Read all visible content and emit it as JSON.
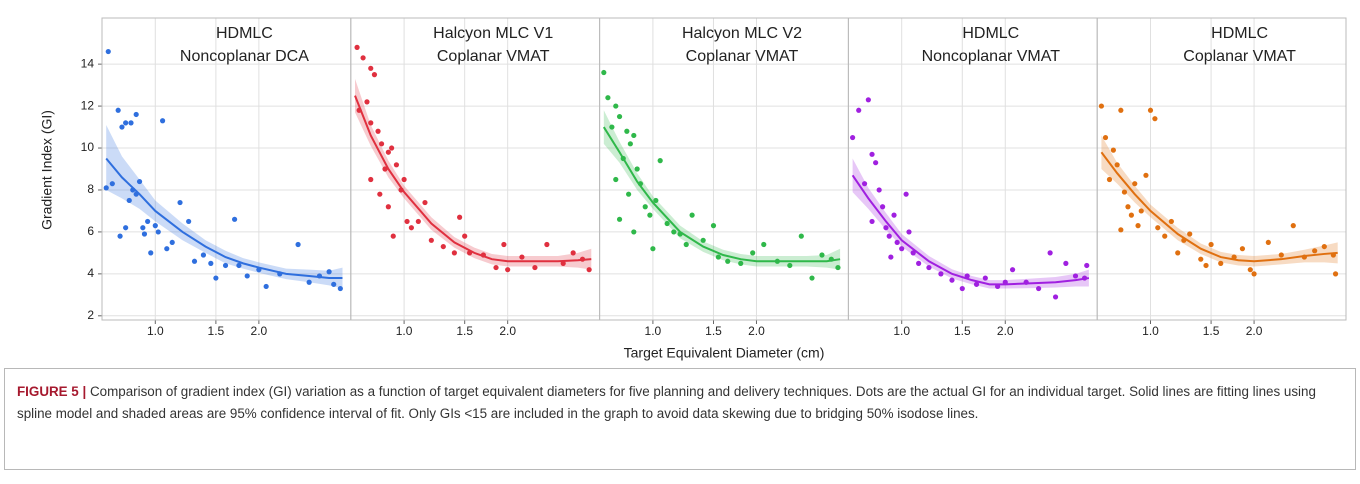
{
  "axes": {
    "y_label": "Gradient Index (GI)",
    "x_label": "Target Equivalent Diameter (cm)",
    "ylim": [
      1.8,
      16.2
    ],
    "yticks": [
      2,
      4,
      6,
      8,
      10,
      12,
      14
    ],
    "xlim": [
      0.7,
      3.7
    ],
    "xscale": "log",
    "xticks": [
      {
        "value": 1,
        "label": "1.0"
      },
      {
        "value": 1.5,
        "label": "1.5"
      },
      {
        "value": 2,
        "label": "2.0"
      }
    ],
    "grid": true
  },
  "chart_data": [
    {
      "type": "scatter",
      "title": [
        "HDMLC",
        "Noncoplanar DCA"
      ],
      "color": "#2f6fde",
      "x": [
        0.73,
        0.72,
        0.75,
        0.78,
        0.8,
        0.82,
        0.85,
        0.88,
        0.79,
        0.82,
        0.84,
        0.86,
        0.88,
        0.9,
        0.92,
        0.93,
        0.95,
        0.97,
        1.0,
        1.02,
        1.05,
        1.08,
        1.12,
        1.18,
        1.25,
        1.3,
        1.38,
        1.45,
        1.5,
        1.6,
        1.7,
        1.75,
        1.85,
        2.0,
        2.1,
        2.3,
        2.6,
        2.8,
        3.0,
        3.2,
        3.3,
        3.45
      ],
      "y": [
        14.6,
        8.1,
        8.3,
        11.8,
        11.0,
        11.2,
        11.2,
        11.6,
        5.8,
        6.2,
        7.5,
        8.0,
        7.8,
        8.4,
        6.2,
        5.9,
        6.5,
        5.0,
        6.3,
        6.0,
        11.3,
        5.2,
        5.5,
        7.4,
        6.5,
        4.6,
        4.9,
        4.5,
        3.8,
        4.4,
        6.6,
        4.4,
        3.9,
        4.2,
        3.4,
        4.0,
        5.4,
        3.6,
        3.9,
        4.1,
        3.5,
        3.3
      ],
      "fit_x": [
        0.72,
        0.8,
        0.9,
        1.0,
        1.2,
        1.4,
        1.6,
        1.8,
        2.0,
        2.4,
        2.8,
        3.2,
        3.5
      ],
      "fit_y": [
        9.5,
        8.6,
        7.8,
        7.0,
        6.0,
        5.3,
        4.8,
        4.5,
        4.3,
        4.0,
        3.9,
        3.8,
        3.8
      ],
      "band_lower": [
        8.0,
        7.6,
        7.1,
        6.5,
        5.6,
        5.0,
        4.5,
        4.25,
        4.05,
        3.75,
        3.6,
        3.45,
        3.3
      ],
      "band_upper": [
        11.1,
        9.6,
        8.5,
        7.5,
        6.4,
        5.6,
        5.1,
        4.75,
        4.55,
        4.25,
        4.2,
        4.15,
        4.3
      ]
    },
    {
      "type": "scatter",
      "title": [
        "Halcyon MLC V1",
        "Coplanar VMAT"
      ],
      "color": "#e0303f",
      "x": [
        0.73,
        0.76,
        0.8,
        0.82,
        0.78,
        0.74,
        0.8,
        0.84,
        0.86,
        0.9,
        0.92,
        0.88,
        0.8,
        0.85,
        0.9,
        0.95,
        0.98,
        1.0,
        1.02,
        1.05,
        0.93,
        1.1,
        1.15,
        1.2,
        1.3,
        1.4,
        1.45,
        1.5,
        1.55,
        1.7,
        1.85,
        1.95,
        2.0,
        2.2,
        2.4,
        2.6,
        2.9,
        3.1,
        3.3,
        3.45
      ],
      "y": [
        14.8,
        14.3,
        13.8,
        13.5,
        12.2,
        11.8,
        11.2,
        10.8,
        10.2,
        9.8,
        10.0,
        9.0,
        8.5,
        7.8,
        7.2,
        9.2,
        8.0,
        8.5,
        6.5,
        6.2,
        5.8,
        6.5,
        7.4,
        5.6,
        5.3,
        5.0,
        6.7,
        5.8,
        5.0,
        4.9,
        4.3,
        5.4,
        4.2,
        4.8,
        4.3,
        5.4,
        4.5,
        5.0,
        4.7,
        4.2
      ],
      "fit_x": [
        0.72,
        0.8,
        0.9,
        1.0,
        1.2,
        1.4,
        1.6,
        1.8,
        2.0,
        2.4,
        2.8,
        3.2,
        3.5
      ],
      "fit_y": [
        12.5,
        10.6,
        9.0,
        7.9,
        6.4,
        5.5,
        5.0,
        4.7,
        4.6,
        4.6,
        4.6,
        4.65,
        4.7
      ],
      "band_lower": [
        11.7,
        10.1,
        8.6,
        7.6,
        6.1,
        5.25,
        4.75,
        4.45,
        4.35,
        4.35,
        4.35,
        4.3,
        4.2
      ],
      "band_upper": [
        13.3,
        11.1,
        9.4,
        8.2,
        6.7,
        5.75,
        5.25,
        4.95,
        4.85,
        4.85,
        4.85,
        5.0,
        5.2
      ]
    },
    {
      "type": "scatter",
      "title": [
        "Halcyon MLC V2",
        "Coplanar VMAT"
      ],
      "color": "#2fb84a",
      "x": [
        0.72,
        0.74,
        0.78,
        0.8,
        0.76,
        0.84,
        0.86,
        0.88,
        0.82,
        0.9,
        0.78,
        0.85,
        0.92,
        0.95,
        0.98,
        1.02,
        1.05,
        1.0,
        1.1,
        1.15,
        1.2,
        1.25,
        1.3,
        1.4,
        1.5,
        1.55,
        1.65,
        1.8,
        1.95,
        2.1,
        2.3,
        2.5,
        2.7,
        2.9,
        3.1,
        3.3,
        3.45,
        0.8,
        0.88
      ],
      "y": [
        13.6,
        12.4,
        12.0,
        11.5,
        11.0,
        10.8,
        10.2,
        10.6,
        9.5,
        9.0,
        8.5,
        7.8,
        8.3,
        7.2,
        6.8,
        7.5,
        9.4,
        5.2,
        6.4,
        6.0,
        5.9,
        5.4,
        6.8,
        5.6,
        6.3,
        4.8,
        4.6,
        4.5,
        5.0,
        5.4,
        4.6,
        4.4,
        5.8,
        3.8,
        4.9,
        4.7,
        4.3,
        6.6,
        6.0
      ],
      "fit_x": [
        0.72,
        0.8,
        0.9,
        1.0,
        1.2,
        1.4,
        1.6,
        1.8,
        2.0,
        2.4,
        2.8,
        3.2,
        3.5
      ],
      "fit_y": [
        11.0,
        9.8,
        8.4,
        7.4,
        6.0,
        5.3,
        4.9,
        4.7,
        4.6,
        4.6,
        4.6,
        4.6,
        4.7
      ],
      "band_lower": [
        10.2,
        9.3,
        8.0,
        7.1,
        5.7,
        5.05,
        4.65,
        4.45,
        4.35,
        4.35,
        4.35,
        4.3,
        4.2
      ],
      "band_upper": [
        11.8,
        10.3,
        8.8,
        7.7,
        6.3,
        5.55,
        5.15,
        4.95,
        4.85,
        4.85,
        4.85,
        4.9,
        5.2
      ]
    },
    {
      "type": "scatter",
      "title": [
        "HDMLC",
        "Noncoplanar VMAT"
      ],
      "color": "#a020e0",
      "x": [
        0.72,
        0.75,
        0.8,
        0.82,
        0.78,
        0.84,
        0.86,
        0.88,
        0.82,
        0.9,
        0.92,
        0.95,
        0.97,
        1.0,
        1.03,
        1.05,
        0.93,
        1.08,
        1.12,
        1.2,
        1.3,
        1.4,
        1.5,
        1.55,
        1.65,
        1.75,
        1.9,
        2.0,
        2.1,
        2.3,
        2.5,
        2.7,
        2.8,
        3.0,
        3.2,
        3.4,
        3.45
      ],
      "y": [
        10.5,
        11.8,
        12.3,
        9.7,
        8.3,
        9.3,
        8.0,
        7.2,
        6.5,
        6.2,
        5.8,
        6.8,
        5.5,
        5.2,
        7.8,
        6.0,
        4.8,
        5.0,
        4.5,
        4.3,
        4.0,
        3.7,
        3.3,
        3.9,
        3.5,
        3.8,
        3.4,
        3.6,
        4.2,
        3.6,
        3.3,
        5.0,
        2.9,
        4.5,
        3.9,
        3.8,
        4.4
      ],
      "fit_x": [
        0.72,
        0.8,
        0.9,
        1.0,
        1.2,
        1.4,
        1.6,
        1.8,
        2.0,
        2.4,
        2.8,
        3.2,
        3.5
      ],
      "fit_y": [
        8.7,
        7.6,
        6.5,
        5.6,
        4.6,
        4.0,
        3.7,
        3.5,
        3.5,
        3.55,
        3.6,
        3.7,
        3.8
      ],
      "band_lower": [
        7.9,
        7.1,
        6.1,
        5.3,
        4.35,
        3.78,
        3.5,
        3.3,
        3.3,
        3.32,
        3.35,
        3.4,
        3.4
      ],
      "band_upper": [
        9.5,
        8.1,
        6.9,
        5.9,
        4.85,
        4.22,
        3.9,
        3.7,
        3.7,
        3.78,
        3.85,
        4.0,
        4.2
      ]
    },
    {
      "type": "scatter",
      "title": [
        "HDMLC",
        "Coplanar VMAT"
      ],
      "color": "#e07010",
      "x": [
        0.72,
        0.74,
        0.78,
        0.8,
        0.82,
        0.76,
        0.84,
        0.86,
        0.88,
        0.9,
        0.92,
        0.94,
        0.97,
        1.0,
        1.03,
        1.05,
        0.82,
        1.1,
        1.15,
        1.2,
        1.25,
        1.3,
        1.4,
        1.45,
        1.5,
        1.6,
        1.75,
        1.85,
        1.95,
        2.0,
        2.2,
        2.4,
        2.6,
        2.8,
        3.0,
        3.2,
        3.4,
        3.45
      ],
      "y": [
        12.0,
        10.5,
        9.9,
        9.2,
        11.8,
        8.5,
        7.9,
        7.2,
        6.8,
        8.3,
        6.3,
        7.0,
        8.7,
        11.8,
        11.4,
        6.2,
        6.1,
        5.8,
        6.5,
        5.0,
        5.6,
        5.9,
        4.7,
        4.4,
        5.4,
        4.5,
        4.8,
        5.2,
        4.2,
        4.0,
        5.5,
        4.9,
        6.3,
        4.8,
        5.1,
        5.3,
        4.9,
        4.0
      ],
      "fit_x": [
        0.72,
        0.8,
        0.9,
        1.0,
        1.2,
        1.4,
        1.6,
        1.8,
        2.0,
        2.4,
        2.8,
        3.2,
        3.5
      ],
      "fit_y": [
        9.8,
        8.8,
        7.8,
        7.0,
        5.9,
        5.2,
        4.8,
        4.65,
        4.6,
        4.7,
        4.85,
        4.95,
        5.0
      ],
      "band_lower": [
        9.0,
        8.3,
        7.4,
        6.7,
        5.6,
        4.95,
        4.55,
        4.4,
        4.35,
        4.45,
        4.55,
        4.55,
        4.5
      ],
      "band_upper": [
        10.6,
        9.3,
        8.2,
        7.3,
        6.2,
        5.45,
        5.05,
        4.9,
        4.85,
        4.95,
        5.15,
        5.35,
        5.5
      ]
    }
  ],
  "caption": {
    "label": "FIGURE 5 |",
    "text": "Comparison of gradient index (GI) variation as a function of target equivalent diameters for five planning and delivery techniques. Dots are the actual GI for an individual target. Solid lines are fitting lines using spline model and shaded areas are 95% confidence interval of fit. Only GIs <15 are included in the graph to avoid data skewing due to bridging 50% isodose lines."
  }
}
